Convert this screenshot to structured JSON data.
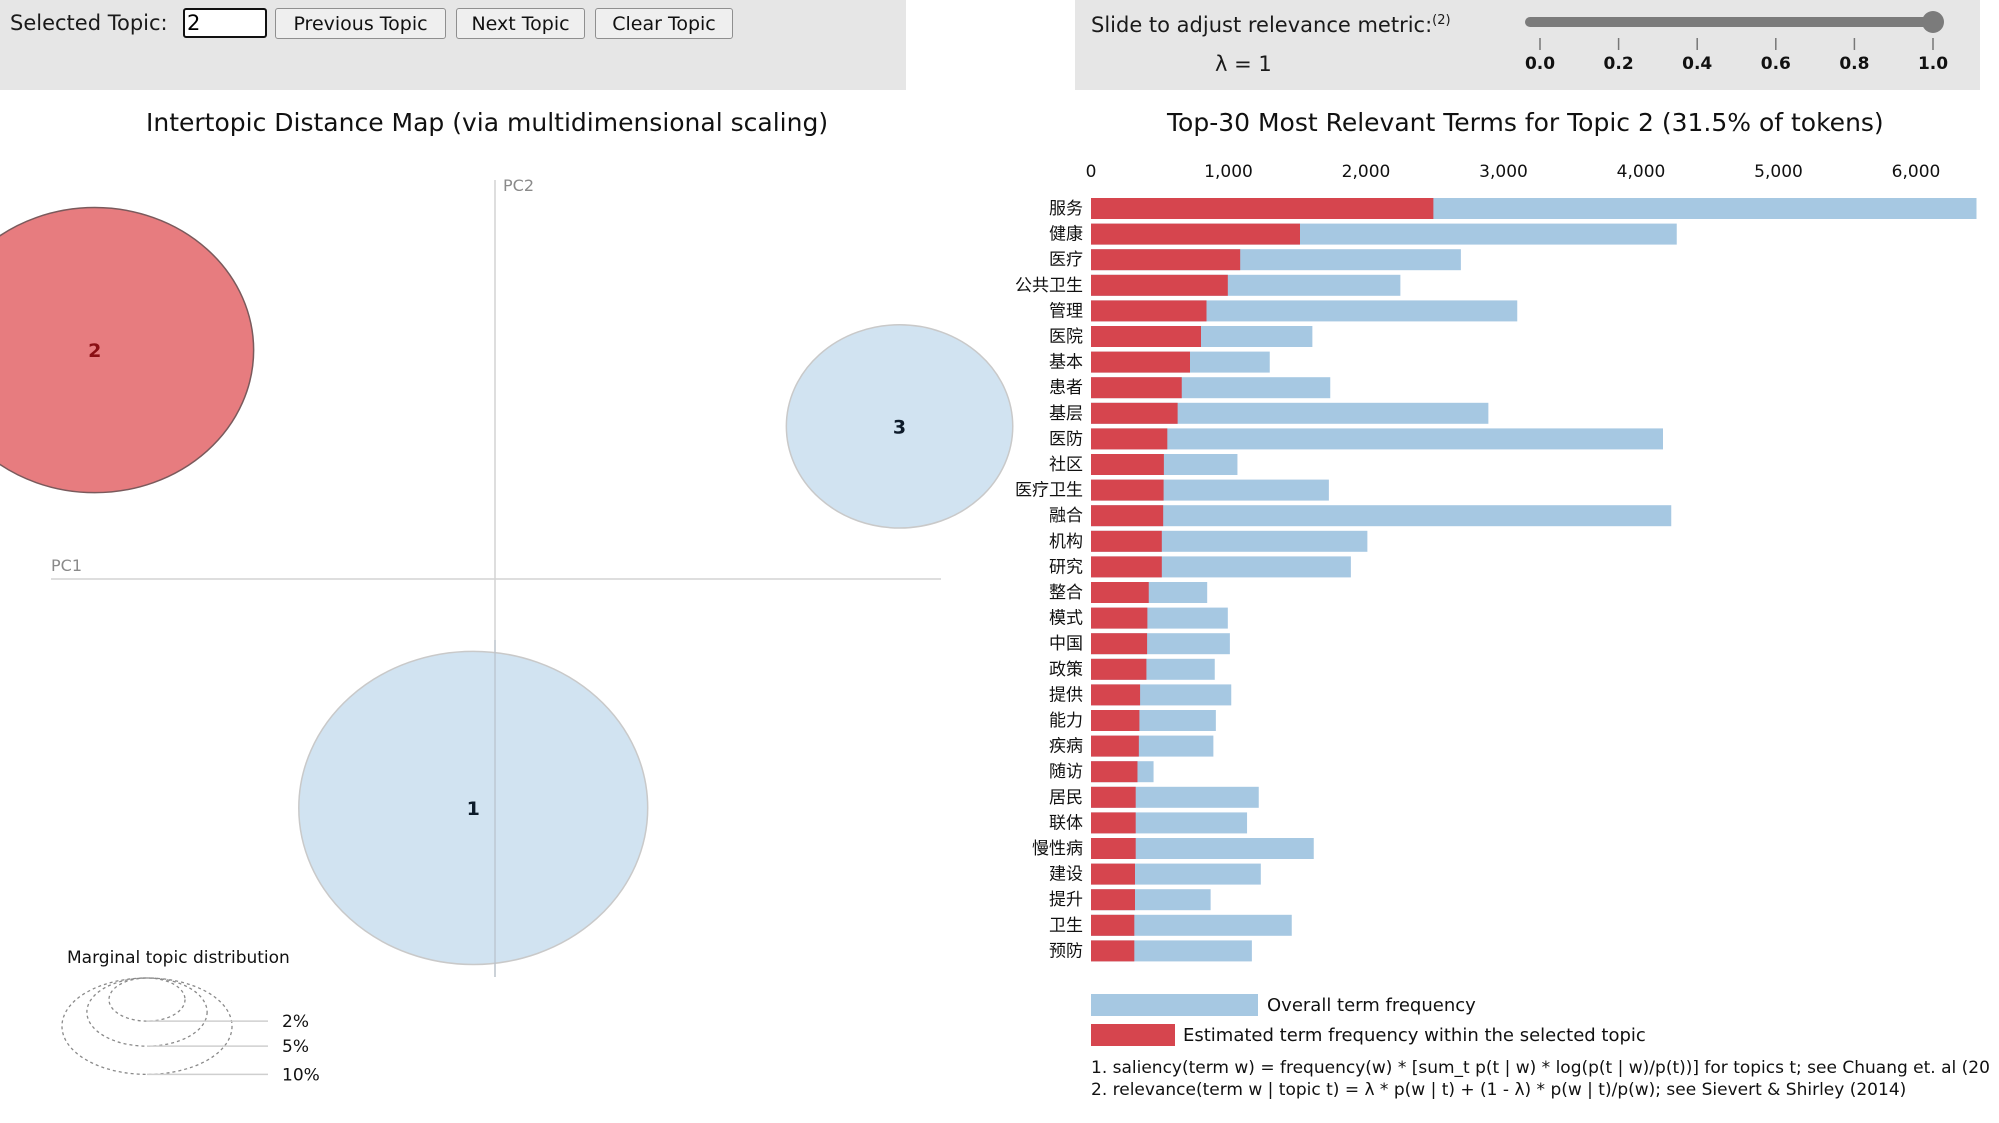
{
  "controls": {
    "selected_topic_label": "Selected Topic:",
    "selected_topic_value": "2",
    "previous_label": "Previous Topic",
    "next_label": "Next Topic",
    "clear_label": "Clear Topic",
    "slider_label": "Slide to adjust relevance metric:",
    "slider_footnote": "(2)",
    "lambda_text": "λ = 1",
    "lambda_value": 1,
    "slider_ticks": [
      "0.0",
      "0.2",
      "0.4",
      "0.6",
      "0.8",
      "1.0"
    ]
  },
  "colors": {
    "selected_topic": "#e77c7f",
    "selected_topic_stroke": "#7a5a5c",
    "topic": "#cfe1f0",
    "topic_stroke": "#c9c9c9",
    "overall_bar": "#a6c8e2",
    "topic_bar": "#d6454e",
    "panel_bg": "#e6e6e6"
  },
  "chart_data": [
    {
      "type": "scatter",
      "title": "Intertopic Distance Map (via multidimensional scaling)",
      "xlabel": "PC1",
      "ylabel": "PC2",
      "topics": [
        {
          "id": "1",
          "pc1": -0.05,
          "pc2": -0.42,
          "marginal_pct": 38,
          "selected": false
        },
        {
          "id": "2",
          "pc1": -0.92,
          "pc2": 0.42,
          "marginal_pct": 31.5,
          "selected": true
        },
        {
          "id": "3",
          "pc1": 0.93,
          "pc2": 0.28,
          "marginal_pct": 16,
          "selected": false
        }
      ],
      "marginal_legend": {
        "title": "Marginal topic distribution",
        "levels": [
          {
            "label": "2%",
            "pct": 2
          },
          {
            "label": "5%",
            "pct": 5
          },
          {
            "label": "10%",
            "pct": 10
          }
        ]
      }
    },
    {
      "type": "bar",
      "title": "Top-30 Most Relevant Terms for Topic 2 (31.5% of tokens)",
      "xlim": [
        0,
        6500
      ],
      "x_ticks": [
        0,
        1000,
        2000,
        3000,
        4000,
        5000,
        6000
      ],
      "x_tick_labels": [
        "0",
        "1,000",
        "2,000",
        "3,000",
        "4,000",
        "5,000",
        "6,000"
      ],
      "categories": [
        "服务",
        "健康",
        "医疗",
        "公共卫生",
        "管理",
        "医院",
        "基本",
        "患者",
        "基层",
        "医防",
        "社区",
        "医疗卫生",
        "融合",
        "机构",
        "研究",
        "整合",
        "模式",
        "中国",
        "政策",
        "提供",
        "能力",
        "疾病",
        "随访",
        "居民",
        "联体",
        "慢性病",
        "建设",
        "提升",
        "卫生",
        "预防"
      ],
      "series": [
        {
          "name": "Overall term frequency",
          "values": [
            6440,
            4260,
            2690,
            2250,
            3100,
            1610,
            1300,
            1740,
            2890,
            4160,
            1065,
            1730,
            4220,
            2010,
            1890,
            845,
            995,
            1010,
            900,
            1020,
            908,
            890,
            455,
            1220,
            1135,
            1620,
            1235,
            870,
            1460,
            1170
          ]
        },
        {
          "name": "Estimated term frequency within the selected topic",
          "values": [
            2490,
            1520,
            1085,
            995,
            840,
            800,
            720,
            660,
            630,
            555,
            530,
            528,
            525,
            515,
            515,
            420,
            410,
            408,
            403,
            357,
            352,
            348,
            338,
            325,
            325,
            325,
            320,
            320,
            315,
            315
          ]
        }
      ],
      "legend": [
        "Overall term frequency",
        "Estimated term frequency within the selected topic"
      ],
      "footnotes": [
        "1. saliency(term w) = frequency(w) * [sum_t p(t | w) * log(p(t | w)/p(t))] for topics t; see Chuang et. al (20",
        "2. relevance(term w | topic t) = λ * p(w | t) + (1 - λ) * p(w | t)/p(w); see Sievert & Shirley (2014)"
      ]
    }
  ]
}
